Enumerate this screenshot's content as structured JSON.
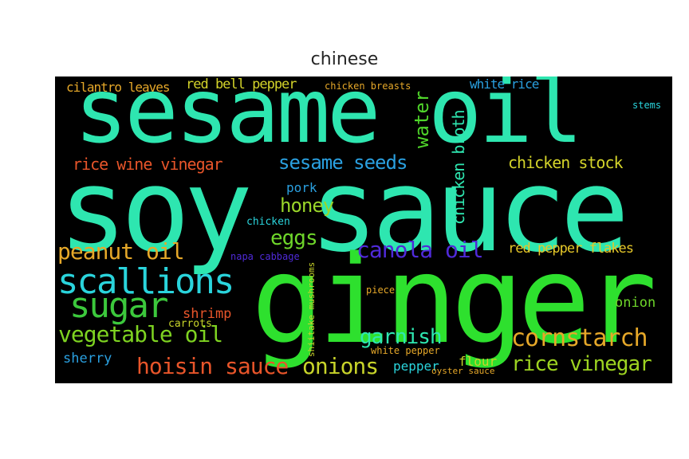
{
  "title": "chinese",
  "words": [
    {
      "text": "ginger",
      "color": "#2ee02e"
    },
    {
      "text": "soy sauce",
      "color": "#2ee6b0"
    },
    {
      "text": "sesame oil",
      "color": "#2ee6b0"
    },
    {
      "text": "scallions",
      "color": "#2ad4dc"
    },
    {
      "text": "sugar",
      "color": "#3cc83c"
    },
    {
      "text": "vegetable oil",
      "color": "#7ed321"
    },
    {
      "text": "hoisin sauce",
      "color": "#e8552a"
    },
    {
      "text": "cornstarch",
      "color": "#e6a829"
    },
    {
      "text": "rice vinegar",
      "color": "#9dd321"
    },
    {
      "text": "onions",
      "color": "#c8d42a"
    },
    {
      "text": "garnish",
      "color": "#2ee6b0"
    },
    {
      "text": "canola oil",
      "color": "#4f2ad9"
    },
    {
      "text": "peanut oil",
      "color": "#e6a829"
    },
    {
      "text": "eggs",
      "color": "#6ed62a"
    },
    {
      "text": "honey",
      "color": "#9ad62a"
    },
    {
      "text": "sesame seeds",
      "color": "#2aa0e0"
    },
    {
      "text": "chicken stock",
      "color": "#d4d42a"
    },
    {
      "text": "rice wine vinegar",
      "color": "#e8552a"
    },
    {
      "text": "red bell pepper",
      "color": "#d4d42a"
    },
    {
      "text": "cilantro leaves",
      "color": "#e6a829"
    },
    {
      "text": "water",
      "color": "#4fd62a"
    },
    {
      "text": "chicken broth",
      "color": "#2ee6b0"
    },
    {
      "text": "red pepper flakes",
      "color": "#e6c829"
    },
    {
      "text": "shrimp",
      "color": "#e8552a"
    },
    {
      "text": "onion",
      "color": "#6ed62a"
    },
    {
      "text": "sherry",
      "color": "#2aa0e0"
    },
    {
      "text": "pepper",
      "color": "#2ad4dc"
    },
    {
      "text": "flour",
      "color": "#c8d42a"
    },
    {
      "text": "pork",
      "color": "#2aa0e0"
    },
    {
      "text": "white rice",
      "color": "#2aa0e0"
    },
    {
      "text": "chicken breasts",
      "color": "#e6a829"
    },
    {
      "text": "carrots",
      "color": "#c8d42a"
    },
    {
      "text": "chicken",
      "color": "#2ad4dc"
    },
    {
      "text": "napa cabbage",
      "color": "#4f2ad9"
    },
    {
      "text": "shiitake mushrooms",
      "color": "#c8d42a"
    },
    {
      "text": "white pepper",
      "color": "#e6a829"
    },
    {
      "text": "oyster sauce",
      "color": "#e6a829"
    },
    {
      "text": "piece",
      "color": "#e6a829"
    },
    {
      "text": "stems",
      "color": "#2ad4dc"
    }
  ]
}
